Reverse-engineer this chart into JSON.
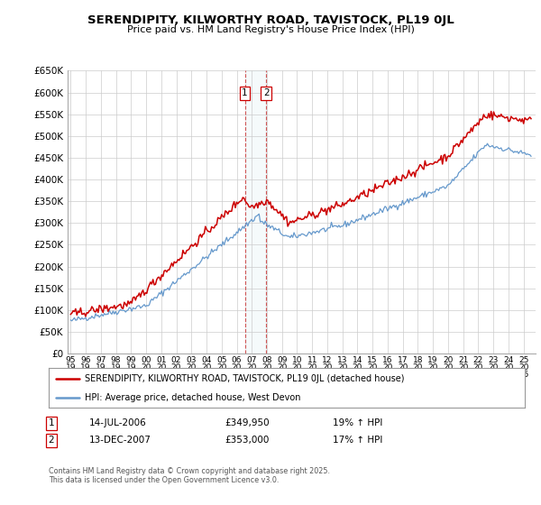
{
  "title_line1": "SERENDIPITY, KILWORTHY ROAD, TAVISTOCK, PL19 0JL",
  "title_line2": "Price paid vs. HM Land Registry's House Price Index (HPI)",
  "ylabel_ticks": [
    "£0",
    "£50K",
    "£100K",
    "£150K",
    "£200K",
    "£250K",
    "£300K",
    "£350K",
    "£400K",
    "£450K",
    "£500K",
    "£550K",
    "£600K",
    "£650K"
  ],
  "ytick_values": [
    0,
    50000,
    100000,
    150000,
    200000,
    250000,
    300000,
    350000,
    400000,
    450000,
    500000,
    550000,
    600000,
    650000
  ],
  "legend_line1": "SERENDIPITY, KILWORTHY ROAD, TAVISTOCK, PL19 0JL (detached house)",
  "legend_line2": "HPI: Average price, detached house, West Devon",
  "event1_label": "1",
  "event1_date": "14-JUL-2006",
  "event1_price": "£349,950",
  "event1_hpi": "19% ↑ HPI",
  "event2_label": "2",
  "event2_date": "13-DEC-2007",
  "event2_price": "£353,000",
  "event2_hpi": "17% ↑ HPI",
  "footnote": "Contains HM Land Registry data © Crown copyright and database right 2025.\nThis data is licensed under the Open Government Licence v3.0.",
  "line_color_red": "#cc0000",
  "line_color_blue": "#6699cc",
  "vline1_x": 2006.54,
  "vline2_x": 2007.95,
  "xmin": 1994.8,
  "xmax": 2025.8,
  "ymin": 0,
  "ymax": 650000,
  "background_color": "#ffffff",
  "grid_color": "#cccccc"
}
